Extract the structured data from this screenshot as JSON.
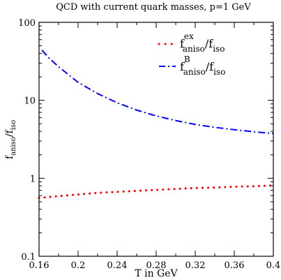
{
  "chart_data": {
    "type": "line",
    "title": "QCD with current quark masses, p=1 GeV",
    "xlabel": "T in GeV",
    "ylabel": {
      "main": "f",
      "sub1": "aniso",
      "mid": "/f",
      "sub2": "iso"
    },
    "xlim": [
      0.16,
      0.4
    ],
    "ylim": [
      0.1,
      100
    ],
    "yscale": "log",
    "grid": false,
    "legend_position": "top-right",
    "x_ticks": [
      0.16,
      0.2,
      0.24,
      0.28,
      0.32,
      0.36,
      0.4
    ],
    "x_tick_labels": [
      "0.16",
      "0.2",
      "0.24",
      "0.28",
      "0.32",
      "0.36",
      "0.4"
    ],
    "y_ticks": [
      0.1,
      1,
      10,
      100
    ],
    "y_tick_labels": [
      "0.1",
      "1",
      "10",
      "100"
    ],
    "series": [
      {
        "legend": {
          "main": "f",
          "sup": "ex",
          "sub1": "aniso",
          "mid": "/f",
          "sub2": "iso"
        },
        "color": "#ff0000",
        "style": "dotted",
        "x": [
          0.16,
          0.18,
          0.2,
          0.22,
          0.24,
          0.26,
          0.28,
          0.3,
          0.32,
          0.34,
          0.36,
          0.38,
          0.4
        ],
        "y": [
          0.56,
          0.59,
          0.62,
          0.65,
          0.67,
          0.69,
          0.71,
          0.73,
          0.75,
          0.76,
          0.78,
          0.79,
          0.81
        ]
      },
      {
        "legend": {
          "main": "f",
          "sup": "B",
          "sub1": "aniso",
          "mid": "/f",
          "sub2": "iso"
        },
        "color": "#0000ff",
        "style": "dash-dot",
        "x": [
          0.163,
          0.17,
          0.18,
          0.2,
          0.22,
          0.24,
          0.26,
          0.28,
          0.3,
          0.32,
          0.34,
          0.36,
          0.38,
          0.4
        ],
        "y": [
          44,
          35,
          27,
          17,
          12.2,
          9.3,
          7.5,
          6.3,
          5.5,
          4.9,
          4.5,
          4.2,
          3.95,
          3.75
        ]
      }
    ]
  }
}
